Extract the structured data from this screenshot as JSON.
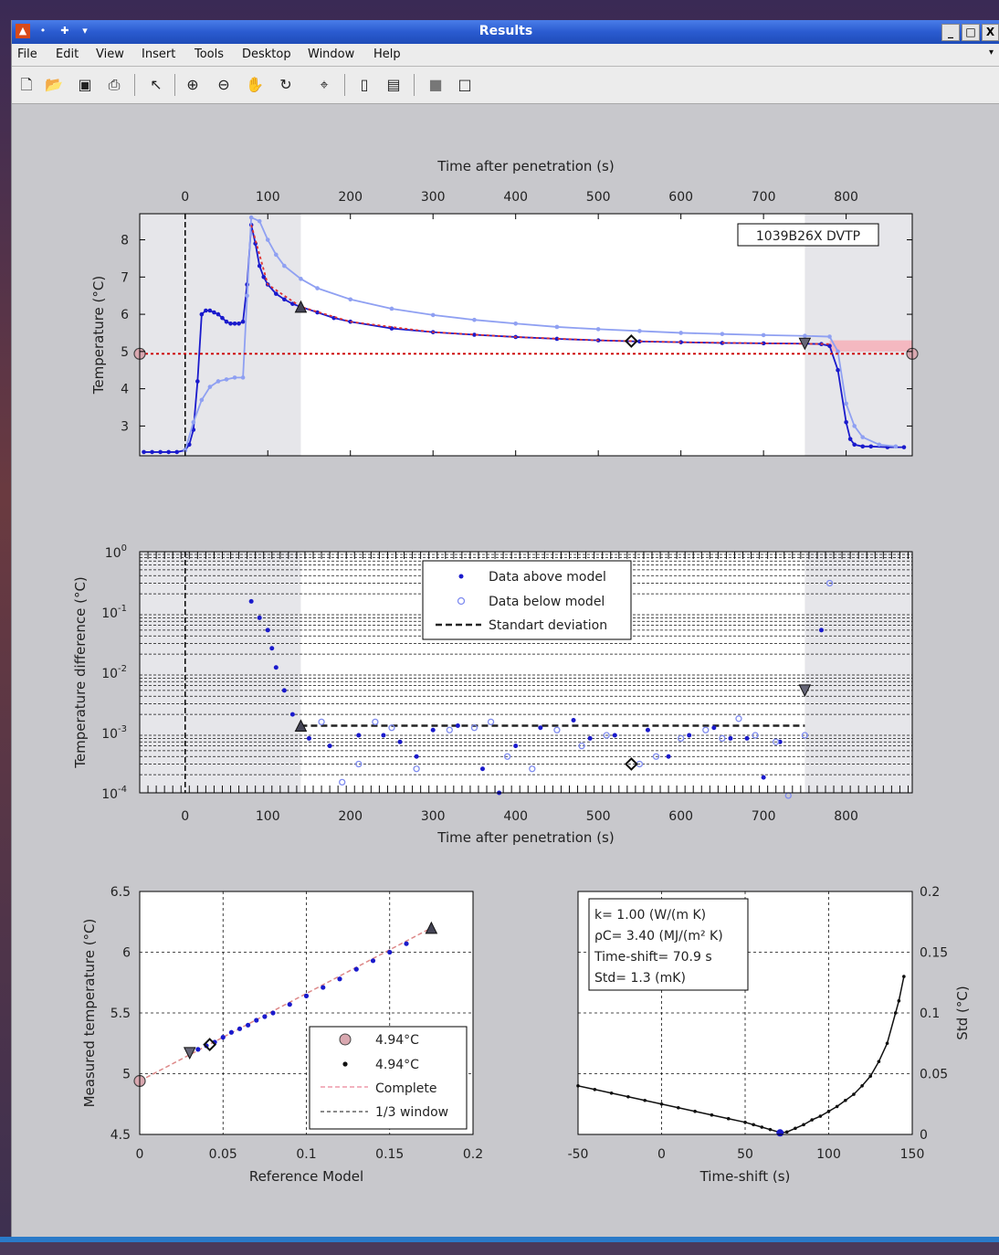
{
  "window": {
    "title": "Results",
    "controls": {
      "minimize": "_",
      "maximize": "□",
      "close": "X"
    }
  },
  "menu": [
    "File",
    "Edit",
    "View",
    "Insert",
    "Tools",
    "Desktop",
    "Window",
    "Help"
  ],
  "toolbar_icons": [
    "new-figure-icon",
    "open-file-icon",
    "save-icon",
    "print-icon",
    "pointer-icon",
    "zoom-in-icon",
    "zoom-out-icon",
    "pan-hand-icon",
    "rotate-3d-icon",
    "data-cursor-icon",
    "colorbar-icon",
    "legend-icon",
    "hide-plot-tools-icon",
    "show-plot-tools-icon"
  ],
  "chart_data": [
    {
      "type": "line",
      "xlabel": "Time after penetration (s)",
      "ylabel": "Temperature (°C)",
      "xlim": [
        -55,
        880
      ],
      "ylim": [
        2.2,
        8.7
      ],
      "xticks": [
        0,
        100,
        200,
        300,
        400,
        500,
        600,
        700,
        800
      ],
      "yticks": [
        3,
        4,
        5,
        6,
        7,
        8
      ],
      "annotation": "1039B26X  DVTP",
      "series": [
        {
          "color": "#1a1acc",
          "style": "line-dots",
          "points": [
            [
              -50,
              2.3
            ],
            [
              -40,
              2.3
            ],
            [
              -30,
              2.3
            ],
            [
              -20,
              2.3
            ],
            [
              -10,
              2.3
            ],
            [
              0,
              2.35
            ],
            [
              5,
              2.5
            ],
            [
              10,
              2.9
            ],
            [
              15,
              4.2
            ],
            [
              20,
              6.0
            ],
            [
              25,
              6.1
            ],
            [
              30,
              6.1
            ],
            [
              35,
              6.05
            ],
            [
              40,
              6.0
            ],
            [
              45,
              5.9
            ],
            [
              50,
              5.8
            ],
            [
              55,
              5.75
            ],
            [
              60,
              5.75
            ],
            [
              65,
              5.75
            ],
            [
              70,
              5.8
            ],
            [
              75,
              6.8
            ],
            [
              80,
              8.4
            ],
            [
              85,
              7.9
            ],
            [
              90,
              7.3
            ],
            [
              95,
              7.0
            ],
            [
              100,
              6.8
            ],
            [
              110,
              6.55
            ],
            [
              120,
              6.4
            ],
            [
              130,
              6.28
            ],
            [
              140,
              6.2
            ],
            [
              160,
              6.05
            ],
            [
              180,
              5.9
            ],
            [
              200,
              5.8
            ],
            [
              250,
              5.62
            ],
            [
              300,
              5.52
            ],
            [
              350,
              5.45
            ],
            [
              400,
              5.39
            ],
            [
              450,
              5.34
            ],
            [
              500,
              5.3
            ],
            [
              550,
              5.27
            ],
            [
              600,
              5.25
            ],
            [
              650,
              5.23
            ],
            [
              700,
              5.22
            ],
            [
              750,
              5.21
            ],
            [
              770,
              5.2
            ],
            [
              780,
              5.15
            ],
            [
              790,
              4.5
            ],
            [
              800,
              3.1
            ],
            [
              805,
              2.65
            ],
            [
              810,
              2.5
            ],
            [
              820,
              2.45
            ],
            [
              830,
              2.45
            ],
            [
              850,
              2.43
            ],
            [
              870,
              2.43
            ]
          ]
        },
        {
          "color": "#8fa0f2",
          "style": "line-dots",
          "points": [
            [
              0,
              2.35
            ],
            [
              10,
              3.1
            ],
            [
              20,
              3.7
            ],
            [
              30,
              4.05
            ],
            [
              40,
              4.2
            ],
            [
              50,
              4.25
            ],
            [
              60,
              4.3
            ],
            [
              70,
              4.3
            ],
            [
              75,
              6.5
            ],
            [
              80,
              8.6
            ],
            [
              90,
              8.5
            ],
            [
              100,
              8.0
            ],
            [
              110,
              7.6
            ],
            [
              120,
              7.3
            ],
            [
              140,
              6.95
            ],
            [
              160,
              6.7
            ],
            [
              200,
              6.4
            ],
            [
              250,
              6.15
            ],
            [
              300,
              5.98
            ],
            [
              350,
              5.85
            ],
            [
              400,
              5.75
            ],
            [
              450,
              5.66
            ],
            [
              500,
              5.6
            ],
            [
              550,
              5.55
            ],
            [
              600,
              5.5
            ],
            [
              650,
              5.47
            ],
            [
              700,
              5.44
            ],
            [
              750,
              5.42
            ],
            [
              780,
              5.4
            ],
            [
              790,
              5.0
            ],
            [
              800,
              3.6
            ],
            [
              810,
              3.0
            ],
            [
              820,
              2.7
            ],
            [
              840,
              2.5
            ],
            [
              860,
              2.45
            ]
          ]
        },
        {
          "color": "#d33",
          "style": "dotted",
          "points": [
            [
              80,
              8.4
            ],
            [
              100,
              6.8
            ],
            [
              140,
              6.2
            ],
            [
              200,
              5.8
            ],
            [
              300,
              5.52
            ],
            [
              400,
              5.39
            ],
            [
              500,
              5.3
            ],
            [
              600,
              5.25
            ],
            [
              700,
              5.22
            ],
            [
              780,
              5.2
            ]
          ]
        },
        {
          "color": "#c00",
          "style": "dotted",
          "points": [
            [
              -55,
              4.94
            ],
            [
              880,
              4.94
            ]
          ]
        }
      ],
      "markers": [
        {
          "shape": "circle",
          "x": -55,
          "y": 4.94
        },
        {
          "shape": "triangle-up",
          "x": 140,
          "y": 6.2
        },
        {
          "shape": "diamond",
          "x": 540,
          "y": 5.28
        },
        {
          "shape": "triangle-down",
          "x": 750,
          "y": 5.21
        },
        {
          "shape": "circle",
          "x": 880,
          "y": 4.94
        }
      ],
      "pink_band": {
        "x": [
          780,
          880
        ],
        "y": [
          5.0,
          5.3
        ]
      },
      "shaded_x": [
        [
          -55,
          140
        ],
        [
          750,
          880
        ]
      ]
    },
    {
      "type": "scatter",
      "xlabel": "Time after penetration (s)",
      "ylabel": "Temperature difference (°C)",
      "yscale": "log",
      "xlim": [
        -55,
        880
      ],
      "ylim": [
        0.0001,
        1
      ],
      "xticks": [
        0,
        100,
        200,
        300,
        400,
        500,
        600,
        700,
        800
      ],
      "yticks": [
        "10^0",
        "10^-1",
        "10^-2",
        "10^-3",
        "10^-4"
      ],
      "legend": [
        "Data above model",
        "Data below model",
        "Standart deviation"
      ],
      "std_line": {
        "y": 0.0013,
        "x": [
          140,
          750
        ]
      },
      "above": [
        [
          80,
          0.15
        ],
        [
          90,
          0.08
        ],
        [
          100,
          0.05
        ],
        [
          105,
          0.025
        ],
        [
          110,
          0.012
        ],
        [
          120,
          0.005
        ],
        [
          130,
          0.002
        ],
        [
          150,
          0.0008
        ],
        [
          175,
          0.0006
        ],
        [
          210,
          0.0009
        ],
        [
          240,
          0.0009
        ],
        [
          260,
          0.0007
        ],
        [
          280,
          0.0004
        ],
        [
          300,
          0.0011
        ],
        [
          330,
          0.0013
        ],
        [
          360,
          0.00025
        ],
        [
          380,
          0.0001
        ],
        [
          400,
          0.0006
        ],
        [
          430,
          0.0012
        ],
        [
          470,
          0.0016
        ],
        [
          490,
          0.0008
        ],
        [
          520,
          0.0009
        ],
        [
          560,
          0.0011
        ],
        [
          585,
          0.0004
        ],
        [
          610,
          0.0009
        ],
        [
          640,
          0.0012
        ],
        [
          660,
          0.0008
        ],
        [
          680,
          0.0008
        ],
        [
          700,
          0.00018
        ],
        [
          720,
          0.0007
        ],
        [
          770,
          0.05
        ]
      ],
      "below": [
        [
          140,
          0.0012
        ],
        [
          165,
          0.0015
        ],
        [
          190,
          0.00015
        ],
        [
          210,
          0.0003
        ],
        [
          230,
          0.0015
        ],
        [
          250,
          0.0012
        ],
        [
          280,
          0.00025
        ],
        [
          320,
          0.0011
        ],
        [
          350,
          0.0012
        ],
        [
          370,
          0.0015
        ],
        [
          390,
          0.0004
        ],
        [
          420,
          0.00025
        ],
        [
          450,
          0.0011
        ],
        [
          480,
          0.0006
        ],
        [
          510,
          0.0009
        ],
        [
          550,
          0.0003
        ],
        [
          570,
          0.0004
        ],
        [
          600,
          0.0008
        ],
        [
          630,
          0.0011
        ],
        [
          650,
          0.0008
        ],
        [
          670,
          0.0017
        ],
        [
          690,
          0.0009
        ],
        [
          715,
          0.0007
        ],
        [
          730,
          9e-05
        ],
        [
          750,
          0.0009
        ],
        [
          780,
          0.3
        ]
      ],
      "markers": [
        {
          "shape": "triangle-up",
          "x": 140,
          "y": 0.0013
        },
        {
          "shape": "diamond",
          "x": 540,
          "y": 0.0003
        },
        {
          "shape": "triangle-down",
          "x": 750,
          "y": 0.005
        }
      ],
      "shaded_x": [
        [
          -55,
          140
        ],
        [
          750,
          880
        ]
      ]
    },
    {
      "type": "scatter",
      "xlabel": "Reference Model",
      "ylabel": "Measured temperature (°C)",
      "xlim": [
        0,
        0.2
      ],
      "ylim": [
        4.5,
        6.5
      ],
      "xticks": [
        0,
        0.05,
        0.1,
        0.15,
        0.2
      ],
      "xtick_labels": [
        "0",
        "0.05",
        "0.1",
        "0.15",
        "0.2"
      ],
      "yticks": [
        4.5,
        5,
        5.5,
        6,
        6.5
      ],
      "ytick_labels": [
        "4.5",
        "5",
        "5.5",
        "6",
        "6.5"
      ],
      "legend": [
        "4.94°C",
        "4.94°C",
        "Complete",
        "1/3 window"
      ],
      "fit_line": {
        "x": [
          0,
          0.175
        ],
        "y": [
          4.94,
          6.2
        ]
      },
      "points": [
        [
          0.03,
          5.17
        ],
        [
          0.035,
          5.2
        ],
        [
          0.04,
          5.23
        ],
        [
          0.045,
          5.26
        ],
        [
          0.05,
          5.3
        ],
        [
          0.055,
          5.34
        ],
        [
          0.06,
          5.37
        ],
        [
          0.065,
          5.4
        ],
        [
          0.07,
          5.44
        ],
        [
          0.075,
          5.47
        ],
        [
          0.08,
          5.5
        ],
        [
          0.09,
          5.57
        ],
        [
          0.1,
          5.64
        ],
        [
          0.11,
          5.71
        ],
        [
          0.12,
          5.78
        ],
        [
          0.13,
          5.86
        ],
        [
          0.14,
          5.93
        ],
        [
          0.15,
          6.0
        ],
        [
          0.16,
          6.07
        ],
        [
          0.175,
          6.2
        ]
      ],
      "markers": [
        {
          "shape": "circle",
          "x": 0,
          "y": 4.94
        },
        {
          "shape": "triangle-down",
          "x": 0.03,
          "y": 5.17
        },
        {
          "shape": "diamond",
          "x": 0.042,
          "y": 5.24
        },
        {
          "shape": "triangle-up",
          "x": 0.175,
          "y": 6.2
        }
      ]
    },
    {
      "type": "line",
      "xlabel": "Time-shift (s)",
      "ylabel": "Std (°C)",
      "xlim": [
        -50,
        150
      ],
      "ylim": [
        0,
        0.2
      ],
      "xticks": [
        -50,
        0,
        50,
        100,
        150
      ],
      "xtick_labels": [
        "-50",
        "0",
        "50",
        "100",
        "150"
      ],
      "yticks": [
        0,
        0.05,
        0.1,
        0.15,
        0.2
      ],
      "ytick_labels": [
        "0",
        "0.05",
        "0.1",
        "0.15",
        "0.2"
      ],
      "text_box": [
        "k= 1.00 (W/(m K)",
        "ρC= 3.40 (MJ/(m² K)",
        "Time-shift= 70.9 s",
        "Std= 1.3 (mK)"
      ],
      "points": [
        [
          -50,
          0.04
        ],
        [
          -40,
          0.037
        ],
        [
          -30,
          0.034
        ],
        [
          -20,
          0.031
        ],
        [
          -10,
          0.028
        ],
        [
          0,
          0.025
        ],
        [
          10,
          0.022
        ],
        [
          20,
          0.019
        ],
        [
          30,
          0.016
        ],
        [
          40,
          0.013
        ],
        [
          50,
          0.01
        ],
        [
          55,
          0.008
        ],
        [
          60,
          0.006
        ],
        [
          65,
          0.004
        ],
        [
          70,
          0.002
        ],
        [
          72,
          0.0015
        ],
        [
          75,
          0.002
        ],
        [
          80,
          0.005
        ],
        [
          85,
          0.008
        ],
        [
          90,
          0.012
        ],
        [
          95,
          0.015
        ],
        [
          100,
          0.019
        ],
        [
          105,
          0.023
        ],
        [
          110,
          0.028
        ],
        [
          115,
          0.033
        ],
        [
          120,
          0.04
        ],
        [
          125,
          0.048
        ],
        [
          130,
          0.06
        ],
        [
          135,
          0.075
        ],
        [
          140,
          0.1
        ],
        [
          142,
          0.11
        ],
        [
          145,
          0.13
        ]
      ],
      "min_marker": {
        "x": 70.9,
        "y": 0.0013
      }
    }
  ]
}
